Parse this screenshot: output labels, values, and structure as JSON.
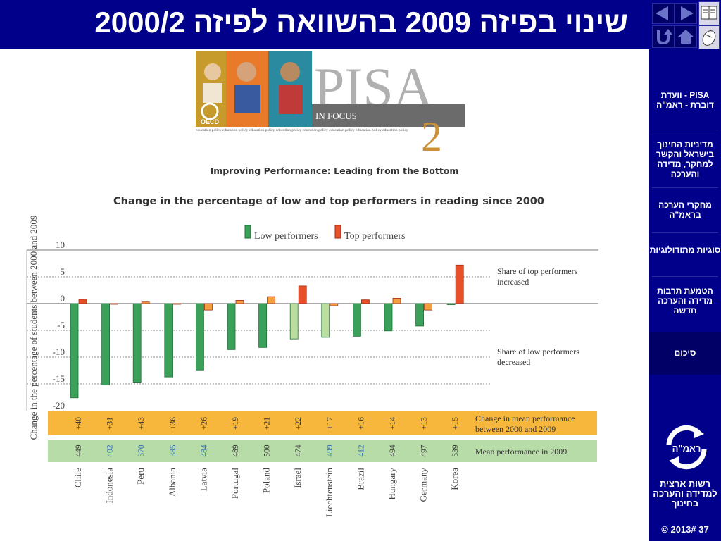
{
  "title": "שינוי בפיזה 2009 בהשוואה לפיזה 2000/2",
  "nav": {
    "items": [
      {
        "label": "PISA - וועדת דוברת - ראמ\"ה"
      },
      {
        "label": "מדיניות החינוך בישראל והקשר למחקר, מדידה והערכה"
      },
      {
        "label": "מחקרי הערכה בראמ\"ה"
      },
      {
        "label": "סוגיות מתודולוגיות"
      },
      {
        "label": "הטמעת תרבות מדידה והערכה חדשה"
      },
      {
        "label": "סיכום"
      }
    ],
    "logo_text": "ראמ\"ה",
    "org_name": "רשות ארצית למדידה והערכה בחינוך",
    "slide_number": "© 2013# 37"
  },
  "banner": {
    "oecd": "OECD",
    "pisa": "PISA",
    "in_focus": "IN FOCUS",
    "issue": "2",
    "strip": "education policy education policy education policy education policy education policy education policy education policy education policy"
  },
  "colors": {
    "low": "#3aa05a",
    "low_light": "#b9dea0",
    "top": "#e8502a",
    "top_light": "#f2a040",
    "band_change": "#f7b63c",
    "band_mean": "#b8dca8",
    "blue_label": "#2a6db5"
  },
  "chart_data": {
    "type": "bar",
    "supertitle": "Improving Performance: Leading from the Bottom",
    "title": "Change in the percentage of low and top performers in reading since 2000",
    "ylabel": "Change in the percentage of students between 2000 and 2009",
    "ylim": [
      -20,
      10
    ],
    "yticks": [
      10,
      5,
      0,
      -5,
      -10,
      -15,
      -20
    ],
    "grid": "dashed",
    "legend_position": "top-center",
    "categories": [
      "Chile",
      "Indonesia",
      "Peru",
      "Albania",
      "Latvia",
      "Portugal",
      "Poland",
      "Israel",
      "Liechtenstein",
      "Brazil",
      "Hungary",
      "Germany",
      "Korea"
    ],
    "category_highlight": [
      false,
      true,
      true,
      true,
      true,
      false,
      false,
      false,
      true,
      true,
      false,
      false,
      false
    ],
    "series": [
      {
        "name": "Low performers",
        "values": [
          -17.6,
          -15.2,
          -14.7,
          -13.7,
          -12.4,
          -8.6,
          -8.2,
          -6.6,
          -6.3,
          -6.1,
          -5.1,
          -4.2,
          -0.2
        ],
        "significant": [
          true,
          true,
          true,
          true,
          true,
          true,
          true,
          false,
          false,
          true,
          true,
          true,
          true
        ]
      },
      {
        "name": "Top performers",
        "values": [
          0.8,
          0.0,
          0.3,
          -0.1,
          -1.2,
          0.6,
          1.3,
          3.3,
          -0.4,
          0.7,
          1.0,
          -1.2,
          7.2
        ],
        "significant": [
          true,
          false,
          false,
          false,
          false,
          false,
          false,
          true,
          false,
          true,
          false,
          false,
          true
        ]
      }
    ],
    "annotations": [
      "Share of top performers increased",
      "Share of low performers decreased"
    ],
    "change_in_mean": {
      "label": "Change in mean performance between 2000 and 2009",
      "values": [
        "+40",
        "+31",
        "+43",
        "+36",
        "+26",
        "+19",
        "+21",
        "+22",
        "+17",
        "+16",
        "+14",
        "+13",
        "+15"
      ]
    },
    "mean_2009": {
      "label": "Mean performance in 2009",
      "values": [
        "449",
        "402",
        "370",
        "385",
        "484",
        "489",
        "500",
        "474",
        "499",
        "412",
        "494",
        "497",
        "539"
      ]
    }
  }
}
